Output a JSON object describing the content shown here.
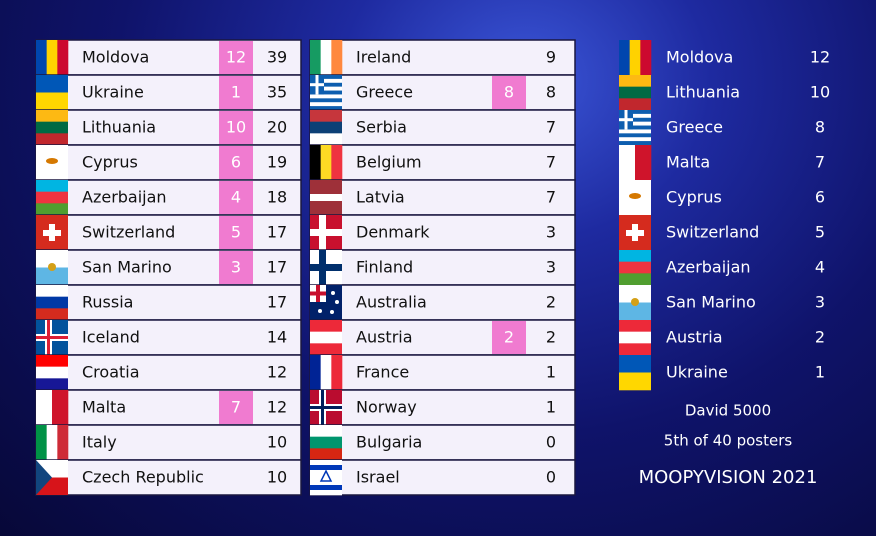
{
  "scoreboard": {
    "columns": [
      {
        "rows": [
          {
            "country": "Moldova",
            "received": 12,
            "total": 39
          },
          {
            "country": "Ukraine",
            "received": 1,
            "total": 35
          },
          {
            "country": "Lithuania",
            "received": 10,
            "total": 20
          },
          {
            "country": "Cyprus",
            "received": 6,
            "total": 19
          },
          {
            "country": "Azerbaijan",
            "received": 4,
            "total": 18
          },
          {
            "country": "Switzerland",
            "received": 5,
            "total": 17
          },
          {
            "country": "San Marino",
            "received": 3,
            "total": 17
          },
          {
            "country": "Russia",
            "total": 17
          },
          {
            "country": "Iceland",
            "total": 14
          },
          {
            "country": "Croatia",
            "total": 12
          },
          {
            "country": "Malta",
            "received": 7,
            "total": 12
          },
          {
            "country": "Italy",
            "total": 10
          },
          {
            "country": "Czech Republic",
            "total": 10
          }
        ]
      },
      {
        "rows": [
          {
            "country": "Ireland",
            "total": 9
          },
          {
            "country": "Greece",
            "received": 8,
            "total": 8
          },
          {
            "country": "Serbia",
            "total": 7
          },
          {
            "country": "Belgium",
            "total": 7
          },
          {
            "country": "Latvia",
            "total": 7
          },
          {
            "country": "Denmark",
            "total": 3
          },
          {
            "country": "Finland",
            "total": 3
          },
          {
            "country": "Australia",
            "total": 2
          },
          {
            "country": "Austria",
            "received": 2,
            "total": 2
          },
          {
            "country": "France",
            "total": 1
          },
          {
            "country": "Norway",
            "total": 1
          },
          {
            "country": "Bulgaria",
            "total": 0
          },
          {
            "country": "Israel",
            "total": 0
          }
        ]
      }
    ]
  },
  "votes": {
    "rows": [
      {
        "country": "Moldova",
        "points": 12
      },
      {
        "country": "Lithuania",
        "points": 10
      },
      {
        "country": "Greece",
        "points": 8
      },
      {
        "country": "Malta",
        "points": 7
      },
      {
        "country": "Cyprus",
        "points": 6
      },
      {
        "country": "Switzerland",
        "points": 5
      },
      {
        "country": "Azerbaijan",
        "points": 4
      },
      {
        "country": "San Marino",
        "points": 3
      },
      {
        "country": "Austria",
        "points": 2
      },
      {
        "country": "Ukraine",
        "points": 1
      }
    ],
    "voter": "David 5000",
    "rank": "5th of 40 posters",
    "show": "MOOPYVISION 2021"
  }
}
